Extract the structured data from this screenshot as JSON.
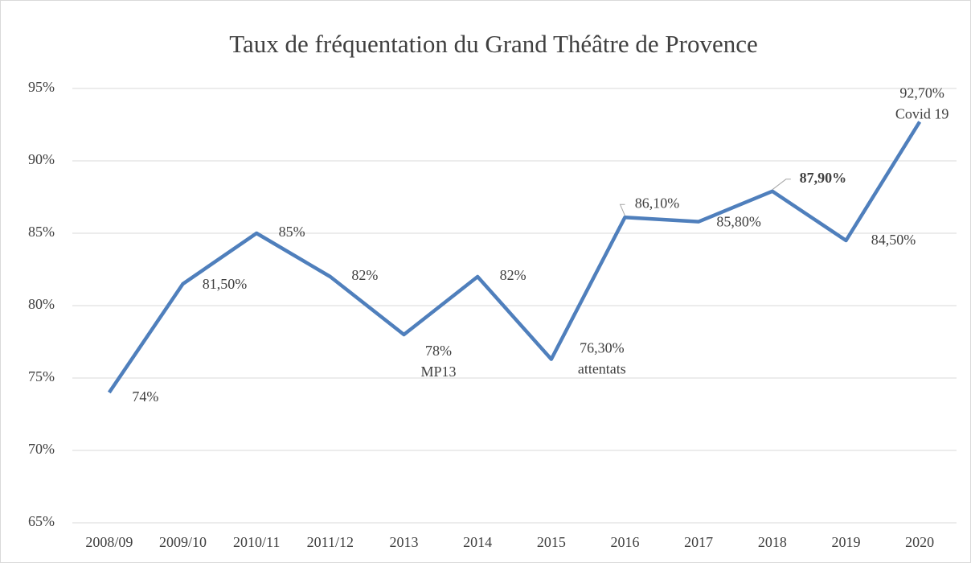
{
  "chart_data": {
    "type": "line",
    "title": "Taux de fréquentation du Grand Théâtre de Provence",
    "categories": [
      "2008/09",
      "2009/10",
      "2010/11",
      "2011/12",
      "2013",
      "2014",
      "2015",
      "2016",
      "2017",
      "2018",
      "2019",
      "2020"
    ],
    "series": [
      {
        "name": "Taux de fréquentation",
        "color": "#4f7fbc",
        "values": [
          74,
          81.5,
          85,
          82,
          78,
          82,
          76.3,
          86.1,
          85.8,
          87.9,
          84.5,
          92.7
        ],
        "value_labels": [
          "74%",
          "81,50%",
          "85%",
          "82%",
          "78%",
          "82%",
          "76,30%",
          "86,10%",
          "85,80%",
          "87,90%",
          "84,50%",
          "92,70%"
        ]
      }
    ],
    "annotations": [
      {
        "category": "2013",
        "text": "MP13"
      },
      {
        "category": "2015",
        "text": "attentats"
      },
      {
        "category": "2020",
        "text": "Covid 19"
      }
    ],
    "ylim": [
      65,
      95
    ],
    "yticks": [
      {
        "value": 65,
        "label": "65%"
      },
      {
        "value": 70,
        "label": "70%"
      },
      {
        "value": 75,
        "label": "75%"
      },
      {
        "value": 80,
        "label": "80%"
      },
      {
        "value": 85,
        "label": "85%"
      },
      {
        "value": 90,
        "label": "90%"
      },
      {
        "value": 95,
        "label": "95%"
      }
    ],
    "grid": true
  }
}
